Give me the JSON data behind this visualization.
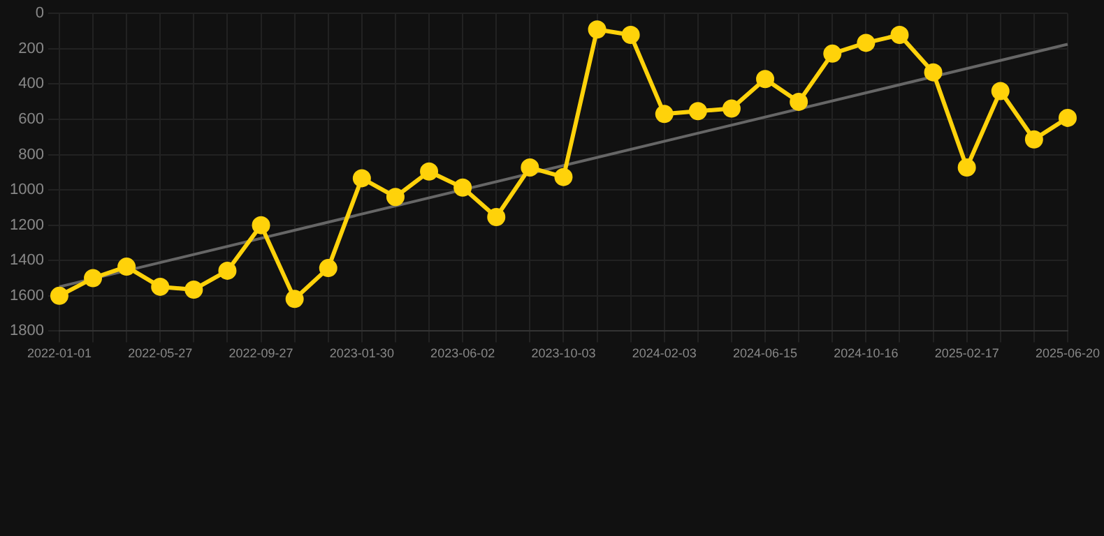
{
  "chart_data": {
    "type": "line",
    "categories": [
      "2022-01-01",
      null,
      null,
      "2022-05-27",
      null,
      null,
      "2022-09-27",
      null,
      null,
      "2023-01-30",
      null,
      null,
      "2023-06-02",
      null,
      null,
      "2023-10-03",
      null,
      null,
      "2024-02-03",
      null,
      null,
      "2024-06-15",
      null,
      null,
      "2024-10-16",
      null,
      null,
      "2025-02-17",
      null,
      null,
      "2025-06-20"
    ],
    "series": [
      {
        "color": "#ffd20a",
        "values": [
          1600,
          1500,
          1435,
          1549,
          1565,
          1458,
          1200,
          1618,
          1443,
          934,
          1040,
          896,
          987,
          1154,
          873,
          927,
          91,
          122,
          570,
          554,
          539,
          372,
          501,
          228,
          167,
          122,
          334,
          873,
          440,
          714,
          592
        ]
      },
      {
        "type": "line",
        "color": "#666666",
        "marker": "none",
        "values": [
          1549,
          null,
          null,
          null,
          null,
          null,
          null,
          null,
          null,
          null,
          null,
          null,
          null,
          null,
          null,
          null,
          null,
          null,
          null,
          null,
          null,
          null,
          null,
          null,
          null,
          null,
          null,
          null,
          null,
          null,
          175
        ]
      }
    ],
    "ylim": [
      1800,
      0
    ],
    "yticks": [
      0,
      200,
      400,
      600,
      800,
      1000,
      1200,
      1400,
      1600,
      1800
    ],
    "grid": true,
    "marker": "circle",
    "line_style": "solid",
    "legend": false
  }
}
